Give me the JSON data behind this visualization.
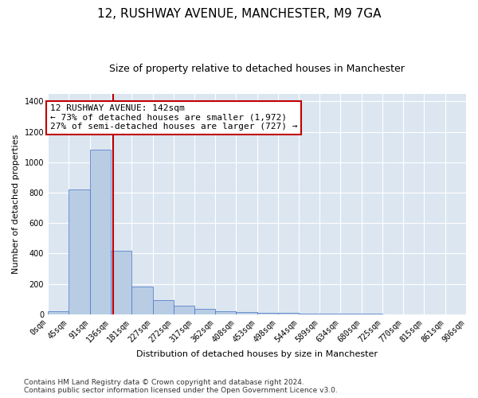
{
  "title": "12, RUSHWAY AVENUE, MANCHESTER, M9 7GA",
  "subtitle": "Size of property relative to detached houses in Manchester",
  "xlabel": "Distribution of detached houses by size in Manchester",
  "ylabel": "Number of detached properties",
  "footer_line1": "Contains HM Land Registry data © Crown copyright and database right 2024.",
  "footer_line2": "Contains public sector information licensed under the Open Government Licence v3.0.",
  "annotation_line1": "12 RUSHWAY AVENUE: 142sqm",
  "annotation_line2": "← 73% of detached houses are smaller (1,972)",
  "annotation_line3": "27% of semi-detached houses are larger (727) →",
  "bar_edges": [
    0,
    45,
    91,
    136,
    181,
    227,
    272,
    317,
    362,
    408,
    453,
    498,
    544,
    589,
    634,
    680,
    725,
    770,
    815,
    861,
    906
  ],
  "bar_heights": [
    20,
    820,
    1080,
    420,
    180,
    95,
    55,
    35,
    20,
    15,
    10,
    8,
    5,
    3,
    2,
    2,
    1,
    1,
    1,
    1
  ],
  "bar_color": "#b8cce4",
  "bar_edge_color": "#4472c4",
  "vline_x": 142,
  "vline_color": "#c00000",
  "ylim": [
    0,
    1450
  ],
  "yticks": [
    0,
    200,
    400,
    600,
    800,
    1000,
    1200,
    1400
  ],
  "bg_color": "#dce6f1",
  "plot_bg_color": "#dce6f1",
  "title_fontsize": 11,
  "subtitle_fontsize": 9,
  "annotation_fontsize": 8,
  "tick_fontsize": 7,
  "label_fontsize": 8,
  "footer_fontsize": 6.5
}
